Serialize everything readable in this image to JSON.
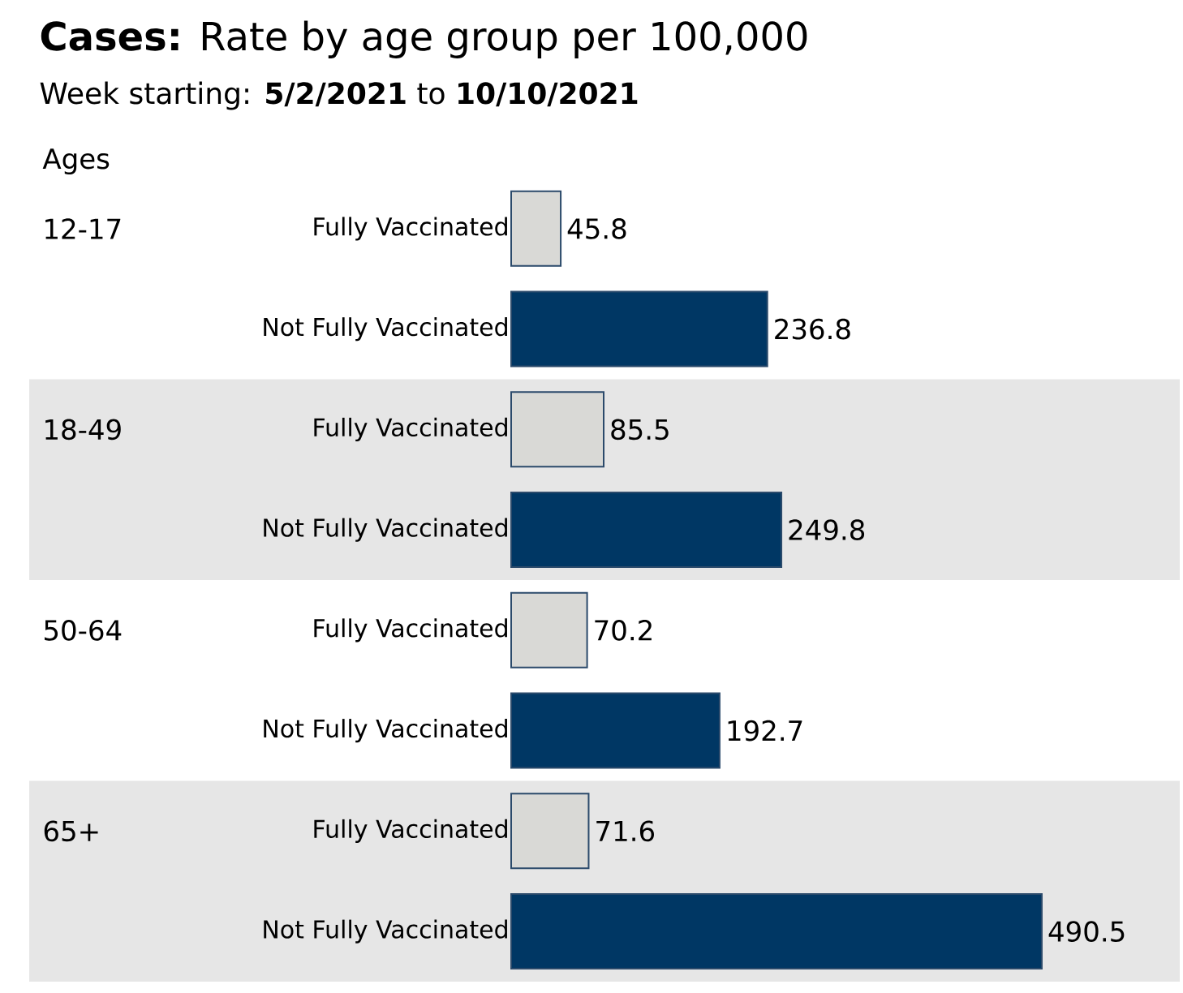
{
  "chart_data": {
    "type": "bar",
    "orientation": "horizontal",
    "title": "**Cases:** Rate by age group per 100,000",
    "subtitle": "Week starting: **5/2/2021** to **10/10/2021**",
    "ylabel": "Ages",
    "categories": [
      "12-17",
      "18-49",
      "50-64",
      "65+"
    ],
    "series": [
      {
        "name": "Fully Vaccinated",
        "color": "#d9d9d6",
        "values": [
          45.8,
          85.5,
          70.2,
          71.6
        ]
      },
      {
        "name": "Not Fully Vaccinated",
        "color": "#003764",
        "values": [
          236.8,
          249.8,
          192.7,
          490.5
        ]
      }
    ],
    "data_labels": true,
    "tick_labels": false
  }
}
